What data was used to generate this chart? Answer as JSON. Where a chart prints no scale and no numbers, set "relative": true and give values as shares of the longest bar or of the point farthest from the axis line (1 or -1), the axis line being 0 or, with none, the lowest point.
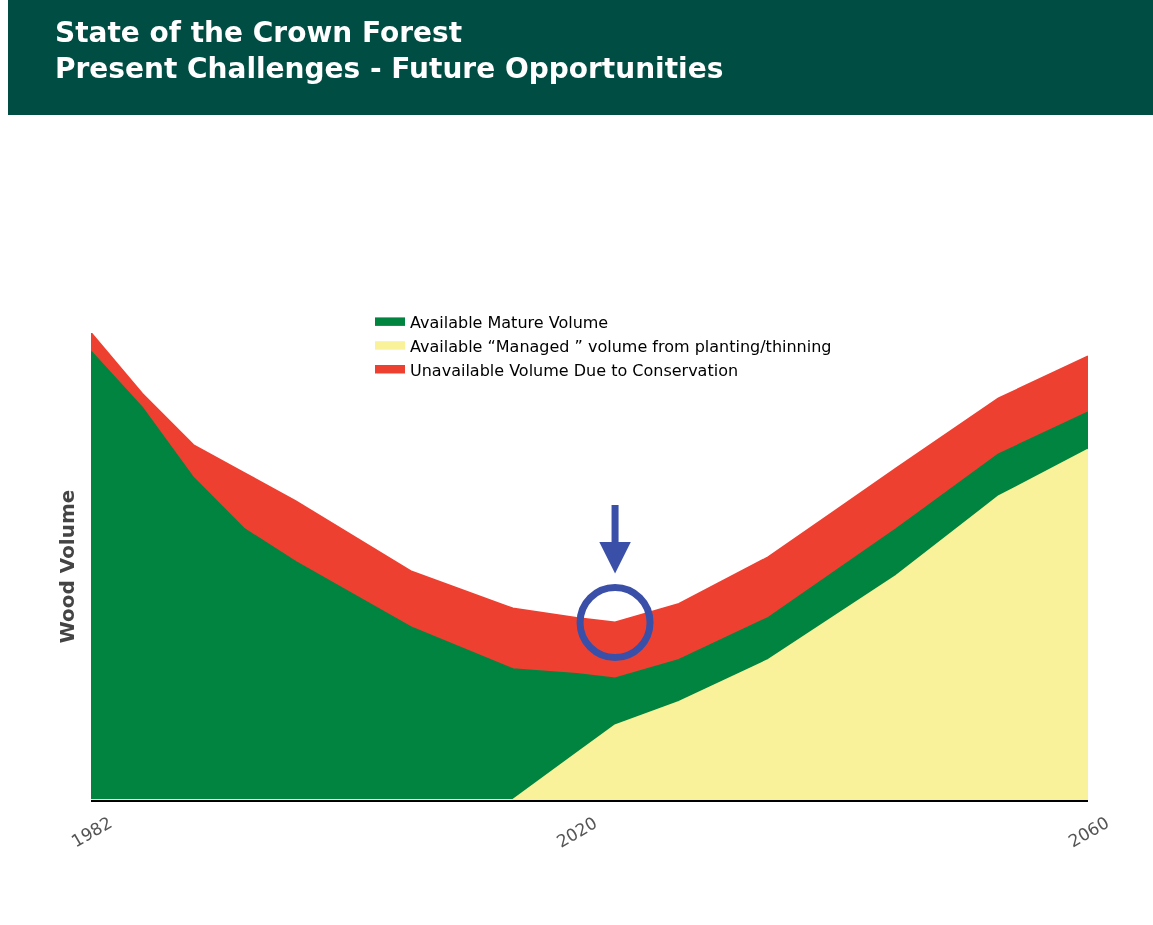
{
  "chart_data": {
    "type": "area",
    "title": "State of the Crown Forest",
    "subtitle": "Present Challenges - Future Opportunities",
    "ylabel": "Wood Volume",
    "relative": true,
    "stacked": true,
    "x": [
      1982,
      1986,
      1990,
      1994,
      1998,
      2007,
      2015,
      2020,
      2023,
      2028,
      2035,
      2045,
      2053,
      2060
    ],
    "xlim": [
      1982,
      2060
    ],
    "xticks": [
      1982,
      2020,
      2060
    ],
    "legend": "top",
    "tick_labels": "x",
    "series": [
      {
        "name": "Available “Managed ” volume from planting/thinning",
        "color": "#f9f29a",
        "values": [
          0,
          0,
          0,
          0,
          0,
          0,
          0,
          0.1,
          0.16,
          0.21,
          0.3,
          0.48,
          0.65,
          0.75
        ]
      },
      {
        "name": "Available Mature Volume",
        "color": "#00843f",
        "values": [
          0.96,
          0.84,
          0.69,
          0.58,
          0.51,
          0.37,
          0.28,
          0.17,
          0.1,
          0.09,
          0.09,
          0.1,
          0.09,
          0.08
        ]
      },
      {
        "name": "Unavailable Volume Due to Conservation",
        "color": "#ee4031",
        "values": [
          0.04,
          0.03,
          0.07,
          0.12,
          0.13,
          0.12,
          0.13,
          0.12,
          0.12,
          0.12,
          0.13,
          0.13,
          0.12,
          0.12
        ]
      }
    ]
  }
}
